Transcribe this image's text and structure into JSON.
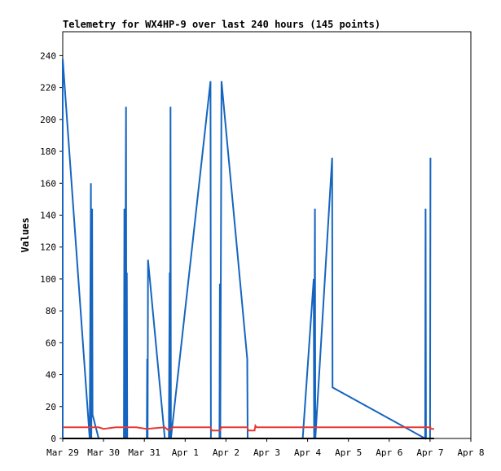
{
  "chart_data": {
    "type": "line",
    "title": "Telemetry for WX4HP-9 over last 240 hours (145 points)",
    "xlabel": "",
    "ylabel": "Values",
    "xlim": [
      "Mar 29",
      "Apr 8"
    ],
    "ylim": [
      0,
      255
    ],
    "x_ticks": [
      "Mar 29",
      "Mar 30",
      "Mar 31",
      "Apr 1",
      "Apr 2",
      "Apr 3",
      "Apr 4",
      "Apr 5",
      "Apr 6",
      "Apr 7",
      "Apr 8"
    ],
    "y_ticks": [
      0,
      20,
      40,
      60,
      80,
      100,
      120,
      140,
      160,
      180,
      200,
      220,
      240
    ],
    "grid": false,
    "series": [
      {
        "color": "#1565c0",
        "points": [
          [
            0.0,
            0
          ],
          [
            0.0,
            238
          ],
          [
            0.66,
            0
          ],
          [
            0.69,
            160
          ],
          [
            0.7,
            0
          ],
          [
            0.72,
            144
          ],
          [
            0.73,
            15
          ],
          [
            0.88,
            0
          ],
          [
            1.5,
            0
          ],
          [
            1.51,
            144
          ],
          [
            1.52,
            0
          ],
          [
            1.55,
            208
          ],
          [
            1.56,
            0
          ],
          [
            1.57,
            104
          ],
          [
            1.58,
            0
          ],
          [
            2.06,
            0
          ],
          [
            2.07,
            50
          ],
          [
            2.08,
            0
          ],
          [
            2.09,
            112
          ],
          [
            2.5,
            0
          ],
          [
            2.6,
            0
          ],
          [
            2.62,
            104
          ],
          [
            2.63,
            0
          ],
          [
            2.64,
            208
          ],
          [
            2.65,
            0
          ],
          [
            3.62,
            224
          ],
          [
            3.63,
            0
          ],
          [
            3.84,
            0
          ],
          [
            3.85,
            97
          ],
          [
            3.86,
            0
          ],
          [
            3.89,
            224
          ],
          [
            4.52,
            50
          ],
          [
            4.53,
            0
          ],
          [
            5.88,
            0
          ],
          [
            6.15,
            100
          ],
          [
            6.16,
            0
          ],
          [
            6.18,
            144
          ],
          [
            6.19,
            0
          ],
          [
            6.6,
            176
          ],
          [
            6.61,
            32
          ],
          [
            8.88,
            0
          ],
          [
            8.89,
            144
          ],
          [
            8.9,
            0
          ],
          [
            9.0,
            0
          ],
          [
            9.01,
            176
          ]
        ]
      },
      {
        "color": "#e53935",
        "points": [
          [
            0.0,
            7
          ],
          [
            0.88,
            7
          ],
          [
            1.0,
            6
          ],
          [
            1.3,
            7
          ],
          [
            1.8,
            7
          ],
          [
            2.05,
            6
          ],
          [
            2.5,
            7
          ],
          [
            2.6,
            5
          ],
          [
            2.7,
            7
          ],
          [
            3.62,
            7
          ],
          [
            3.65,
            5
          ],
          [
            3.85,
            5
          ],
          [
            3.89,
            7
          ],
          [
            4.52,
            7
          ],
          [
            4.55,
            5
          ],
          [
            4.7,
            5
          ],
          [
            4.72,
            8
          ],
          [
            4.75,
            7
          ],
          [
            9.01,
            7
          ],
          [
            9.01,
            6
          ],
          [
            9.1,
            6
          ]
        ]
      },
      {
        "color": "#000000",
        "points": [
          [
            0.0,
            0
          ],
          [
            9.1,
            0
          ]
        ]
      }
    ]
  }
}
